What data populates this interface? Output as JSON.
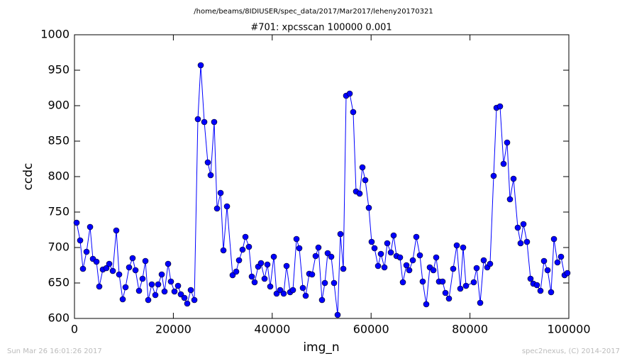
{
  "chart_data": {
    "type": "line",
    "title": "/home/beams/8IDIUSER/spec_data/2017/Mar2017/leheny20170321",
    "subtitle": "#701: xpcsscan 100000 0.001",
    "x_label": "img_n",
    "y_label": "ccdc",
    "footer_left": "Sun Mar 26 16:01:26 2017",
    "footer_right": "spec2nexus, (C) 2014-2017",
    "xlim": [
      0,
      100000
    ],
    "xticks": [
      0,
      20000,
      40000,
      60000,
      80000,
      100000
    ],
    "ylim": [
      600,
      1000
    ],
    "yticks": [
      600,
      650,
      700,
      750,
      800,
      850,
      900,
      950,
      1000
    ],
    "grid": false,
    "series": [
      {
        "name": "ccdc",
        "color": "#0000ff",
        "x": [
          430,
          1150,
          1720,
          2440,
          3160,
          3730,
          4450,
          5020,
          5740,
          6460,
          7030,
          7750,
          8460,
          9040,
          9760,
          10330,
          11050,
          11760,
          12340,
          13060,
          13770,
          14350,
          14920,
          15640,
          16360,
          16930,
          17650,
          18220,
          18940,
          19510,
          20230,
          20950,
          21520,
          22240,
          22810,
          23530,
          24250,
          24960,
          25540,
          26260,
          26970,
          27550,
          28260,
          28840,
          29560,
          30130,
          30850,
          31990,
          32710,
          33290,
          34000,
          34580,
          35290,
          35870,
          36440,
          37160,
          37730,
          38450,
          39020,
          39600,
          40320,
          40890,
          41610,
          42320,
          42900,
          43620,
          44190,
          44910,
          45480,
          46200,
          46770,
          47490,
          48060,
          48780,
          49350,
          50070,
          50650,
          51220,
          51940,
          52510,
          53230,
          53800,
          54380,
          54950,
          55670,
          56380,
          56960,
          57680,
          58250,
          58820,
          59540,
          60110,
          60690,
          61410,
          61980,
          62700,
          63270,
          63990,
          64560,
          65140,
          65850,
          66430,
          67150,
          67720,
          68440,
          69150,
          69870,
          70440,
          71160,
          71880,
          72600,
          73170,
          73740,
          74460,
          75040,
          75750,
          76610,
          77330,
          78050,
          78620,
          79200,
          80770,
          81350,
          82070,
          82780,
          83500,
          84070,
          84790,
          85370,
          86080,
          86800,
          87520,
          88090,
          88810,
          89670,
          90240,
          90820,
          91530,
          92250,
          92820,
          93540,
          94260,
          94980,
          95700,
          96410,
          96990,
          97700,
          98420,
          99140,
          99710
        ],
        "values": [
          735,
          710,
          670,
          694,
          729,
          684,
          680,
          645,
          669,
          671,
          677,
          667,
          724,
          662,
          627,
          644,
          672,
          685,
          668,
          639,
          656,
          681,
          626,
          648,
          633,
          648,
          662,
          638,
          677,
          652,
          638,
          646,
          634,
          629,
          621,
          640,
          626,
          881,
          957,
          877,
          820,
          802,
          877,
          755,
          777,
          696,
          758,
          661,
          666,
          682,
          697,
          715,
          701,
          659,
          651,
          673,
          678,
          656,
          676,
          645,
          687,
          635,
          640,
          635,
          674,
          637,
          640,
          712,
          699,
          643,
          632,
          663,
          662,
          688,
          700,
          626,
          650,
          692,
          687,
          650,
          605,
          719,
          670,
          914,
          917,
          891,
          779,
          776,
          813,
          795,
          756,
          708,
          699,
          674,
          691,
          672,
          706,
          693,
          717,
          688,
          686,
          651,
          675,
          668,
          682,
          715,
          689,
          652,
          620,
          672,
          668,
          686,
          652,
          652,
          636,
          628,
          670,
          703,
          642,
          700,
          646,
          651,
          671,
          622,
          682,
          672,
          677,
          801,
          897,
          899,
          818,
          848,
          768,
          797,
          728,
          706,
          733,
          708,
          656,
          649,
          647,
          639,
          681,
          668,
          637,
          712,
          679,
          687,
          661,
          664
        ]
      }
    ]
  }
}
